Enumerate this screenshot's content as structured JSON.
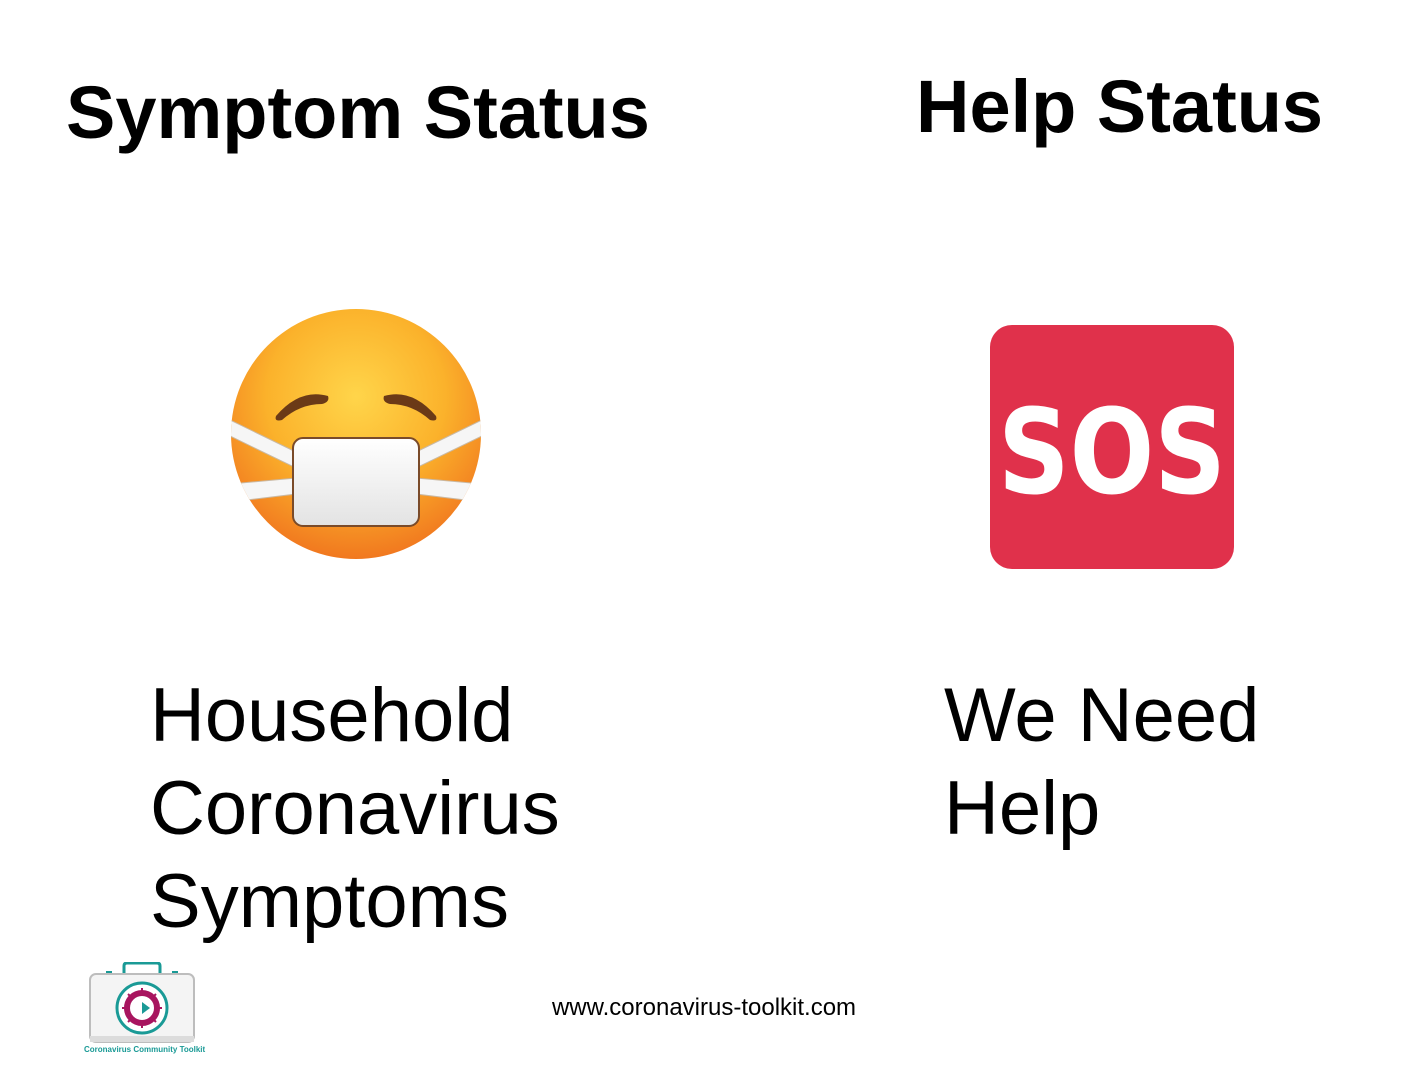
{
  "symptom": {
    "title": "Symptom Status",
    "icon": "face-with-medical-mask-icon",
    "lines": [
      "Household",
      "Coronavirus",
      "Symptoms"
    ]
  },
  "help": {
    "title": "Help Status",
    "icon": "sos-icon",
    "badge_text": "SOS",
    "badge_color": "#e0314b",
    "lines": [
      "We Need",
      "Help"
    ]
  },
  "footer": {
    "url": "www.coronavirus-toolkit.com",
    "logo_caption": "Coronavirus Community Toolkit",
    "logo_accent": "#1a9a96",
    "logo_virus_color": "#a8155f"
  }
}
